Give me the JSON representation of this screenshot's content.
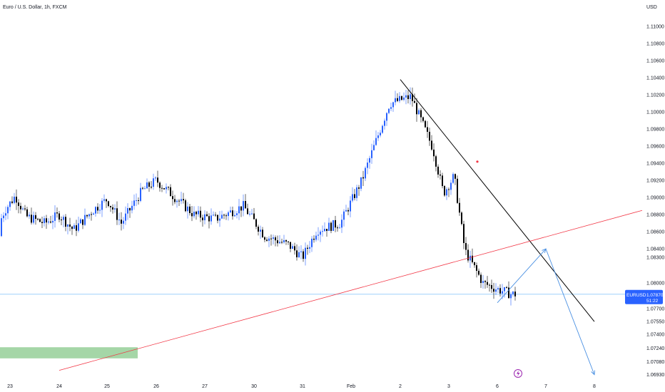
{
  "header": {
    "title": "Euro / U.S. Dollar, 1h, FXCM",
    "currency": "USD"
  },
  "price_label": {
    "symbol": "EURUSD",
    "price": "1.07870",
    "countdown": "51:22"
  },
  "flash_icon": "lightning-icon",
  "colors": {
    "up": "#2962ff",
    "down": "#000000",
    "trendline_down": "#000000",
    "trendline_up": "#f23645",
    "projection": "#4a90e2",
    "zone": "#a5d6a7",
    "price_line": "#90caf9",
    "price_badge": "#2962ff",
    "marker": "#f23645"
  },
  "chart_data": {
    "type": "candlestick",
    "title": "Euro / U.S. Dollar, 1h, FXCM",
    "ylabel": "USD",
    "ylim": [
      1.0686,
      1.1131
    ],
    "y_ticks": [
      "1.11000",
      "1.10800",
      "1.10600",
      "1.10400",
      "1.10200",
      "1.10000",
      "1.09800",
      "1.09600",
      "1.09400",
      "1.09200",
      "1.09000",
      "1.08800",
      "1.08600",
      "1.08400",
      "1.08300",
      "1.08000",
      "1.07700",
      "1.07550",
      "1.07400",
      "1.07240",
      "1.07080",
      "1.06930"
    ],
    "x_ticks": [
      "23",
      "24",
      "25",
      "26",
      "27",
      "30",
      "31",
      "Feb",
      "2",
      "3",
      "6",
      "7",
      "8"
    ],
    "price_path": [
      [
        "23",
        1.0855
      ],
      [
        "23",
        1.0885
      ],
      [
        "23",
        1.0902
      ],
      [
        "23",
        1.0878
      ],
      [
        "24",
        1.087
      ],
      [
        "24",
        1.088
      ],
      [
        "24",
        1.0862
      ],
      [
        "25",
        1.0885
      ],
      [
        "25",
        1.0898
      ],
      [
        "25",
        1.087
      ],
      [
        "26",
        1.0908
      ],
      [
        "26",
        1.092
      ],
      [
        "26",
        1.0905
      ],
      [
        "27",
        1.088
      ],
      [
        "27",
        1.0875
      ],
      [
        "30",
        1.089
      ],
      [
        "30",
        1.0855
      ],
      [
        "31",
        1.0845
      ],
      [
        "31",
        1.083
      ],
      [
        "31",
        1.0862
      ],
      [
        "Feb",
        1.087
      ],
      [
        "Feb",
        1.092
      ],
      [
        "2",
        1.101
      ],
      [
        "2",
        1.1018
      ],
      [
        "3",
        1.0958
      ],
      [
        "3",
        1.0905
      ],
      [
        "3",
        1.0925
      ],
      [
        "3",
        1.0838
      ],
      [
        "6",
        1.08
      ],
      [
        "6",
        1.0793
      ],
      [
        "6",
        1.0787
      ]
    ],
    "annotations": {
      "down_trendline": [
        [
          "2",
          1.1038
        ],
        [
          "8",
          1.0755
        ]
      ],
      "up_trendline": [
        [
          "24",
          1.0698
        ],
        [
          "after 8",
          1.0885
        ]
      ],
      "projection": [
        [
          "6",
          1.0777
        ],
        [
          "7",
          1.084
        ],
        [
          "8",
          1.0693
        ]
      ],
      "demand_zone": {
        "y_range": [
          1.0712,
          1.0725
        ],
        "x_range": [
          "before 23",
          "25.5"
        ]
      },
      "current_price": 1.0787,
      "marker_at": [
        "3",
        1.0942
      ]
    }
  }
}
